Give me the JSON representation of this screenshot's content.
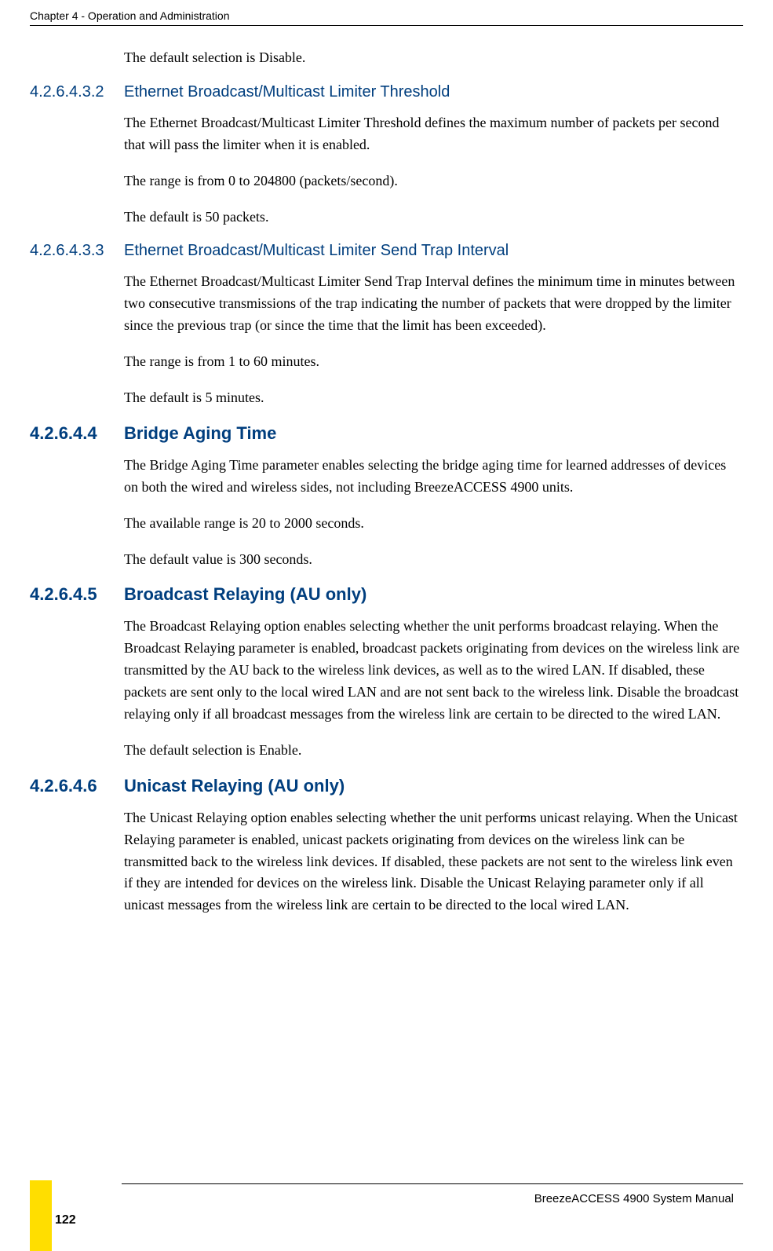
{
  "header": {
    "chapter_title": "Chapter 4 - Operation and Administration"
  },
  "sections": [
    {
      "type": "body",
      "text": "The default selection is Disable."
    },
    {
      "type": "heading",
      "number": "4.2.6.4.3.2",
      "title": "Ethernet Broadcast/Multicast Limiter Threshold",
      "bold": false
    },
    {
      "type": "body",
      "text": "The Ethernet Broadcast/Multicast Limiter Threshold defines the maximum number of packets per second that will pass the limiter when it is enabled."
    },
    {
      "type": "body",
      "text": "The range is from 0 to 204800 (packets/second)."
    },
    {
      "type": "body",
      "text": "The default is 50 packets."
    },
    {
      "type": "heading",
      "number": "4.2.6.4.3.3",
      "title": "Ethernet Broadcast/Multicast Limiter Send Trap Interval",
      "bold": false
    },
    {
      "type": "body",
      "text": "The Ethernet Broadcast/Multicast Limiter Send Trap Interval defines the minimum time in minutes between two consecutive transmissions of the trap indicating the number of packets that were dropped by the limiter since the previous trap (or since the time that the limit has been exceeded)."
    },
    {
      "type": "body",
      "text": "The range is from 1 to 60 minutes."
    },
    {
      "type": "body",
      "text": "The default is 5 minutes."
    },
    {
      "type": "heading",
      "number": "4.2.6.4.4",
      "title": "Bridge Aging Time",
      "bold": true
    },
    {
      "type": "body",
      "text": "The Bridge Aging Time parameter enables selecting the bridge aging time for learned addresses of devices on both the wired and wireless sides, not including BreezeACCESS 4900 units."
    },
    {
      "type": "body",
      "text": "The available range is 20 to 2000 seconds."
    },
    {
      "type": "body",
      "text": "The default value is 300 seconds."
    },
    {
      "type": "heading",
      "number": "4.2.6.4.5",
      "title": "Broadcast Relaying (AU only)",
      "bold": true
    },
    {
      "type": "body",
      "text": "The Broadcast Relaying option enables selecting whether the unit performs broadcast relaying. When the Broadcast Relaying parameter is enabled, broadcast packets originating from devices on the wireless link are transmitted by the AU back to the wireless link devices, as well as to the wired LAN. If disabled, these packets are sent only to the local wired LAN and are not sent back to the wireless link. Disable the broadcast relaying only if all broadcast messages from the wireless link are certain to be directed to the wired LAN."
    },
    {
      "type": "body",
      "text": "The default selection is Enable."
    },
    {
      "type": "heading",
      "number": "4.2.6.4.6",
      "title": "Unicast Relaying (AU only)",
      "bold": true
    },
    {
      "type": "body",
      "text": "The Unicast Relaying option enables selecting whether the unit performs unicast relaying. When the Unicast Relaying parameter is enabled, unicast packets originating from devices on the wireless link can be transmitted back to the wireless link devices. If disabled, these packets are not sent to the wireless link even if they are intended for devices on the wireless link. Disable the Unicast Relaying parameter only if all unicast messages from the wireless link are certain to be directed to the local wired LAN."
    }
  ],
  "footer": {
    "manual_name": "BreezeACCESS 4900 System Manual",
    "page_number": "122"
  },
  "colors": {
    "heading_color": "#003e7e",
    "accent_yellow": "#ffde00",
    "text_color": "#000000",
    "background": "#ffffff"
  }
}
